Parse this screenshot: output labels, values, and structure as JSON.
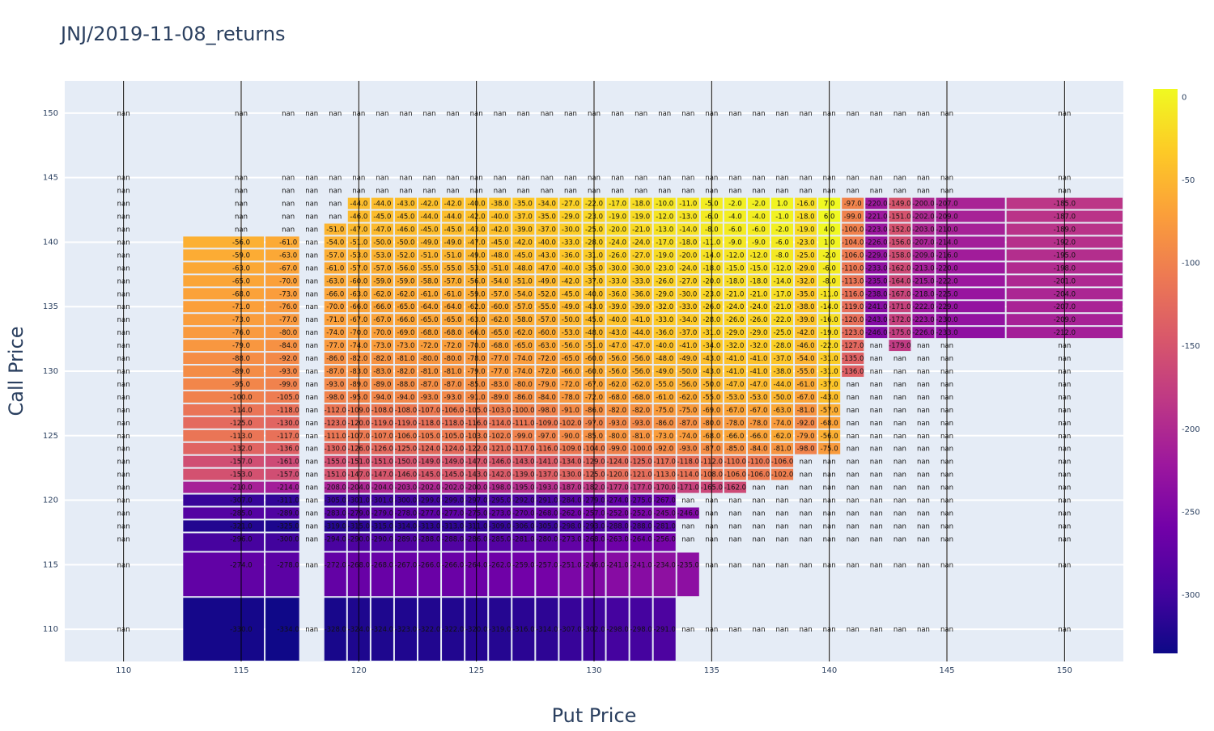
{
  "chart_data": {
    "type": "heatmap",
    "title": "JNJ/2019-11-08_returns",
    "xlabel": "Put Price",
    "ylabel": "Call Price",
    "x_ticks": [
      110,
      115,
      120,
      125,
      130,
      135,
      140,
      145,
      150
    ],
    "y_ticks": [
      110,
      115,
      120,
      125,
      130,
      135,
      140,
      145,
      150
    ],
    "xlim": [
      107.5,
      152.5
    ],
    "ylim": [
      107.5,
      152.5
    ],
    "colorbar_ticks": [
      0,
      -50,
      -100,
      -150,
      -200,
      -250,
      -300
    ],
    "colorbar_range": [
      -335,
      5
    ],
    "colorscale": [
      "#0d0887",
      "#46039f",
      "#7201a8",
      "#9c179e",
      "#bd3786",
      "#d8576b",
      "#ed7953",
      "#fb9f3a",
      "#fdca26",
      "#f0f921"
    ],
    "x": [
      110,
      115,
      117,
      118,
      119,
      120,
      121,
      122,
      123,
      124,
      125,
      126,
      127,
      128,
      129,
      130,
      131,
      132,
      133,
      134,
      135,
      136,
      137,
      138,
      139,
      140,
      141,
      142,
      143,
      144,
      145,
      150
    ],
    "y": [
      110,
      115,
      117,
      118,
      119,
      120,
      121,
      122,
      123,
      124,
      125,
      126,
      127,
      128,
      129,
      130,
      131,
      132,
      133,
      134,
      135,
      136,
      137,
      138,
      139,
      140,
      141,
      142,
      143,
      144,
      145,
      150
    ],
    "z": [
      [
        null,
        -330.0,
        -334.0,
        null,
        -328.0,
        -324.0,
        -324.0,
        -323.0,
        -322.0,
        -322.0,
        -320.0,
        -319.0,
        -316.0,
        -314.0,
        -307.0,
        -302.0,
        -298.0,
        -298.0,
        -291.0,
        null,
        null,
        null,
        null,
        null,
        null,
        null,
        null,
        null,
        null,
        null,
        null,
        null
      ],
      [
        null,
        -274.0,
        -278.0,
        null,
        -272.0,
        -268.0,
        -268.0,
        -267.0,
        -266.0,
        -266.0,
        -264.0,
        -262.0,
        -259.0,
        -257.0,
        -251.0,
        -246.0,
        -241.0,
        -241.0,
        -234.0,
        -235.0,
        null,
        null,
        null,
        null,
        null,
        null,
        null,
        null,
        null,
        null,
        null,
        null
      ],
      [
        null,
        -296.0,
        -300.0,
        null,
        -294.0,
        -290.0,
        -290.0,
        -289.0,
        -288.0,
        -288.0,
        -286.0,
        -285.0,
        -281.0,
        -280.0,
        -273.0,
        -268.0,
        -263.0,
        -264.0,
        -256.0,
        null,
        null,
        null,
        null,
        null,
        null,
        null,
        null,
        null,
        null,
        null,
        null,
        null
      ],
      [
        null,
        -321.0,
        -325.0,
        null,
        -319.0,
        -315.0,
        -315.0,
        -314.0,
        -313.0,
        -313.0,
        -311.0,
        -309.0,
        -306.0,
        -305.0,
        -298.0,
        -293.0,
        -288.0,
        -288.0,
        -281.0,
        null,
        null,
        null,
        null,
        null,
        null,
        null,
        null,
        null,
        null,
        null,
        null,
        null
      ],
      [
        null,
        -285.0,
        -289.0,
        null,
        -283.0,
        -279.0,
        -279.0,
        -278.0,
        -277.0,
        -277.0,
        -275.0,
        -273.0,
        -270.0,
        -268.0,
        -262.0,
        -257.0,
        -252.0,
        -252.0,
        -245.0,
        -246.0,
        null,
        null,
        null,
        null,
        null,
        null,
        null,
        null,
        null,
        null,
        null,
        null
      ],
      [
        null,
        -307.0,
        -311.0,
        null,
        -305.0,
        -301.0,
        -301.0,
        -300.0,
        -299.0,
        -299.0,
        -297.0,
        -295.0,
        -292.0,
        -291.0,
        -284.0,
        -279.0,
        -274.0,
        -275.0,
        -267.0,
        null,
        null,
        null,
        null,
        null,
        null,
        null,
        null,
        null,
        null,
        null,
        null,
        null
      ],
      [
        null,
        -210.0,
        -214.0,
        null,
        -208.0,
        -204.0,
        -204.0,
        -203.0,
        -202.0,
        -202.0,
        -200.0,
        -198.0,
        -195.0,
        -193.0,
        -187.0,
        -182.0,
        -177.0,
        -177.0,
        -170.0,
        -171.0,
        -165.0,
        -162.0,
        null,
        null,
        null,
        null,
        null,
        null,
        null,
        null,
        null,
        null
      ],
      [
        null,
        -153.0,
        -157.0,
        null,
        -151.0,
        -147.0,
        -147.0,
        -146.0,
        -145.0,
        -145.0,
        -143.0,
        -142.0,
        -139.0,
        -137.0,
        -130.0,
        -125.0,
        -120.0,
        -121.0,
        -113.0,
        -114.0,
        -108.0,
        -106.0,
        -106.0,
        -102.0,
        null,
        null,
        null,
        null,
        null,
        null,
        null,
        null
      ],
      [
        null,
        -157.0,
        -161.0,
        null,
        -155.0,
        -151.0,
        -151.0,
        -150.0,
        -149.0,
        -149.0,
        -147.0,
        -146.0,
        -143.0,
        -141.0,
        -134.0,
        -129.0,
        -124.0,
        -125.0,
        -117.0,
        -118.0,
        -112.0,
        -110.0,
        -110.0,
        -106.0,
        null,
        null,
        null,
        null,
        null,
        null,
        null,
        null
      ],
      [
        null,
        -132.0,
        -136.0,
        null,
        -130.0,
        -126.0,
        -126.0,
        -125.0,
        -124.0,
        -124.0,
        -122.0,
        -121.0,
        -117.0,
        -116.0,
        -109.0,
        -104.0,
        -99.0,
        -100.0,
        -92.0,
        -93.0,
        -87.0,
        -85.0,
        -84.0,
        -81.0,
        -98.0,
        -75.0,
        null,
        null,
        null,
        null,
        null,
        null
      ],
      [
        null,
        -113.0,
        -117.0,
        null,
        -111.0,
        -107.0,
        -107.0,
        -106.0,
        -105.0,
        -105.0,
        -103.0,
        -102.0,
        -99.0,
        -97.0,
        -90.0,
        -85.0,
        -80.0,
        -81.0,
        -73.0,
        -74.0,
        -68.0,
        -66.0,
        -66.0,
        -62.0,
        -79.0,
        -56.0,
        null,
        null,
        null,
        null,
        null,
        null
      ],
      [
        null,
        -125.0,
        -130.0,
        null,
        -123.0,
        -120.0,
        -119.0,
        -119.0,
        -118.0,
        -118.0,
        -116.0,
        -114.0,
        -111.0,
        -109.0,
        -102.0,
        -97.0,
        -93.0,
        -93.0,
        -86.0,
        -87.0,
        -80.0,
        -78.0,
        -78.0,
        -74.0,
        -92.0,
        -68.0,
        null,
        null,
        null,
        null,
        null,
        null
      ],
      [
        null,
        -114.0,
        -118.0,
        null,
        -112.0,
        -109.0,
        -108.0,
        -108.0,
        -107.0,
        -106.0,
        -105.0,
        -103.0,
        -100.0,
        -98.0,
        -91.0,
        -86.0,
        -82.0,
        -82.0,
        -75.0,
        -75.0,
        -69.0,
        -67.0,
        -67.0,
        -63.0,
        -81.0,
        -57.0,
        null,
        null,
        null,
        null,
        null,
        null
      ],
      [
        null,
        -100.0,
        -105.0,
        null,
        -98.0,
        -95.0,
        -94.0,
        -94.0,
        -93.0,
        -93.0,
        -91.0,
        -89.0,
        -86.0,
        -84.0,
        -78.0,
        -72.0,
        -68.0,
        -68.0,
        -61.0,
        -62.0,
        -55.0,
        -53.0,
        -53.0,
        -50.0,
        -67.0,
        -43.0,
        null,
        null,
        null,
        null,
        null,
        null
      ],
      [
        null,
        -95.0,
        -99.0,
        null,
        -93.0,
        -89.0,
        -89.0,
        -88.0,
        -87.0,
        -87.0,
        -85.0,
        -83.0,
        -80.0,
        -79.0,
        -72.0,
        -67.0,
        -62.0,
        -62.0,
        -55.0,
        -56.0,
        -50.0,
        -47.0,
        -47.0,
        -44.0,
        -61.0,
        -37.0,
        null,
        null,
        null,
        null,
        null,
        null
      ],
      [
        null,
        -89.0,
        -93.0,
        null,
        -87.0,
        -83.0,
        -83.0,
        -82.0,
        -81.0,
        -81.0,
        -79.0,
        -77.0,
        -74.0,
        -72.0,
        -66.0,
        -60.0,
        -56.0,
        -56.0,
        -49.0,
        -50.0,
        -43.0,
        -41.0,
        -41.0,
        -38.0,
        -55.0,
        -31.0,
        -136.0,
        null,
        null,
        null,
        null,
        null
      ],
      [
        null,
        -88.0,
        -92.0,
        null,
        -86.0,
        -82.0,
        -82.0,
        -81.0,
        -80.0,
        -80.0,
        -78.0,
        -77.0,
        -74.0,
        -72.0,
        -65.0,
        -60.0,
        -56.0,
        -56.0,
        -48.0,
        -49.0,
        -43.0,
        -41.0,
        -41.0,
        -37.0,
        -54.0,
        -31.0,
        -135.0,
        null,
        null,
        null,
        null,
        null
      ],
      [
        null,
        -79.0,
        -84.0,
        null,
        -77.0,
        -74.0,
        -73.0,
        -73.0,
        -72.0,
        -72.0,
        -70.0,
        -68.0,
        -65.0,
        -63.0,
        -56.0,
        -51.0,
        -47.0,
        -47.0,
        -40.0,
        -41.0,
        -34.0,
        -32.0,
        -32.0,
        -28.0,
        -46.0,
        -22.0,
        -127.0,
        null,
        -179.0,
        null,
        null,
        null
      ],
      [
        null,
        -76.0,
        -80.0,
        null,
        -74.0,
        -70.0,
        -70.0,
        -69.0,
        -68.0,
        -68.0,
        -66.0,
        -65.0,
        -62.0,
        -60.0,
        -53.0,
        -48.0,
        -43.0,
        -44.0,
        -36.0,
        -37.0,
        -31.0,
        -29.0,
        -29.0,
        -25.0,
        -42.0,
        -19.0,
        -123.0,
        -246.0,
        -175.0,
        -226.0,
        -233.0,
        -212.0
      ],
      [
        null,
        -73.0,
        -77.0,
        null,
        -71.0,
        -67.0,
        -67.0,
        -66.0,
        -65.0,
        -65.0,
        -63.0,
        -62.0,
        -58.0,
        -57.0,
        -50.0,
        -45.0,
        -40.0,
        -41.0,
        -33.0,
        -34.0,
        -28.0,
        -26.0,
        -26.0,
        -22.0,
        -39.0,
        -16.0,
        -120.0,
        -243.0,
        -172.0,
        -223.0,
        -230.0,
        -209.0
      ],
      [
        null,
        -71.0,
        -76.0,
        null,
        -70.0,
        -66.0,
        -66.0,
        -65.0,
        -64.0,
        -64.0,
        -62.0,
        -60.0,
        -57.0,
        -55.0,
        -49.0,
        -43.0,
        -39.0,
        -39.0,
        -32.0,
        -33.0,
        -26.0,
        -24.0,
        -24.0,
        -21.0,
        -38.0,
        -14.0,
        -119.0,
        -241.0,
        -171.0,
        -222.0,
        -229.0,
        -207.0
      ],
      [
        null,
        -68.0,
        -73.0,
        null,
        -66.0,
        -63.0,
        -62.0,
        -62.0,
        -61.0,
        -61.0,
        -59.0,
        -57.0,
        -54.0,
        -52.0,
        -45.0,
        -40.0,
        -36.0,
        -36.0,
        -29.0,
        -30.0,
        -23.0,
        -21.0,
        -21.0,
        -17.0,
        -35.0,
        -11.0,
        -116.0,
        -238.0,
        -167.0,
        -218.0,
        -225.0,
        -204.0
      ],
      [
        null,
        -65.0,
        -70.0,
        null,
        -63.0,
        -60.0,
        -59.0,
        -59.0,
        -58.0,
        -57.0,
        -56.0,
        -54.0,
        -51.0,
        -49.0,
        -42.0,
        -37.0,
        -33.0,
        -33.0,
        -26.0,
        -27.0,
        -20.0,
        -18.0,
        -18.0,
        -14.0,
        -32.0,
        -8.0,
        -113.0,
        -235.0,
        -164.0,
        -215.0,
        -222.0,
        -201.0
      ],
      [
        null,
        -63.0,
        -67.0,
        null,
        -61.0,
        -57.0,
        -57.0,
        -56.0,
        -55.0,
        -55.0,
        -53.0,
        -51.0,
        -48.0,
        -47.0,
        -40.0,
        -35.0,
        -30.0,
        -30.0,
        -23.0,
        -24.0,
        -18.0,
        -15.0,
        -15.0,
        -12.0,
        -29.0,
        -6.0,
        -110.0,
        -233.0,
        -162.0,
        -213.0,
        -220.0,
        -198.0
      ],
      [
        null,
        -59.0,
        -63.0,
        null,
        -57.0,
        -53.0,
        -53.0,
        -52.0,
        -51.0,
        -51.0,
        -49.0,
        -48.0,
        -45.0,
        -43.0,
        -36.0,
        -31.0,
        -26.0,
        -27.0,
        -19.0,
        -20.0,
        -14.0,
        -12.0,
        -12.0,
        -8.0,
        -25.0,
        -2.0,
        -106.0,
        -229.0,
        -158.0,
        -209.0,
        -216.0,
        -195.0
      ],
      [
        null,
        -56.0,
        -61.0,
        null,
        -54.0,
        -51.0,
        -50.0,
        -50.0,
        -49.0,
        -49.0,
        -47.0,
        -45.0,
        -42.0,
        -40.0,
        -33.0,
        -28.0,
        -24.0,
        -24.0,
        -17.0,
        -18.0,
        -11.0,
        -9.0,
        -9.0,
        -6.0,
        -23.0,
        1.0,
        -104.0,
        -226.0,
        -156.0,
        -207.0,
        -214.0,
        -192.0
      ],
      [
        null,
        null,
        null,
        null,
        -51.0,
        -47.0,
        -47.0,
        -46.0,
        -45.0,
        -45.0,
        -43.0,
        -42.0,
        -39.0,
        -37.0,
        -30.0,
        -25.0,
        -20.0,
        -21.0,
        -13.0,
        -14.0,
        -8.0,
        -6.0,
        -6.0,
        -2.0,
        -19.0,
        4.0,
        -100.0,
        -223.0,
        -152.0,
        -203.0,
        -210.0,
        -189.0
      ],
      [
        null,
        null,
        null,
        null,
        null,
        -46.0,
        -45.0,
        -45.0,
        -44.0,
        -44.0,
        -42.0,
        -40.0,
        -37.0,
        -35.0,
        -29.0,
        -23.0,
        -19.0,
        -19.0,
        -12.0,
        -13.0,
        -6.0,
        -4.0,
        -4.0,
        -1.0,
        -18.0,
        6.0,
        -99.0,
        -221.0,
        -151.0,
        -202.0,
        -209.0,
        -187.0
      ],
      [
        null,
        null,
        null,
        null,
        null,
        -44.0,
        -44.0,
        -43.0,
        -42.0,
        -42.0,
        -40.0,
        -38.0,
        -35.0,
        -34.0,
        -27.0,
        -22.0,
        -17.0,
        -18.0,
        -10.0,
        -11.0,
        -5.0,
        -2.0,
        -2.0,
        1.0,
        -16.0,
        7.0,
        -97.0,
        -220.0,
        -149.0,
        -200.0,
        -207.0,
        -185.0
      ],
      [
        null,
        null,
        null,
        null,
        null,
        null,
        null,
        null,
        null,
        null,
        null,
        null,
        null,
        null,
        null,
        null,
        null,
        null,
        null,
        null,
        null,
        null,
        null,
        null,
        null,
        null,
        null,
        null,
        null,
        null,
        null,
        null
      ],
      [
        null,
        null,
        null,
        null,
        null,
        null,
        null,
        null,
        null,
        null,
        null,
        null,
        null,
        null,
        null,
        null,
        null,
        null,
        null,
        null,
        null,
        null,
        null,
        null,
        null,
        null,
        null,
        null,
        null,
        null,
        null,
        null
      ],
      [
        null,
        null,
        null,
        null,
        null,
        null,
        null,
        null,
        null,
        null,
        null,
        null,
        null,
        null,
        null,
        null,
        null,
        null,
        null,
        null,
        null,
        null,
        null,
        null,
        null,
        null,
        null,
        null,
        null,
        null,
        null,
        null
      ]
    ],
    "nan_label": "nan",
    "nan_columns": [
      [
        1,
        2,
        3,
        4,
        5,
        6,
        7,
        8,
        9,
        10,
        11,
        12,
        13,
        14,
        15,
        16,
        17,
        18,
        19,
        20,
        21,
        22,
        23,
        24,
        25,
        26,
        27,
        28,
        29,
        30,
        31
      ],
      [
        1,
        2,
        3,
        4,
        5,
        6,
        7,
        8,
        9,
        10,
        11,
        12,
        13,
        14,
        15,
        16,
        17,
        18,
        19,
        20,
        21,
        22,
        23,
        24,
        25,
        26,
        27,
        28,
        29,
        30,
        31
      ]
    ]
  }
}
